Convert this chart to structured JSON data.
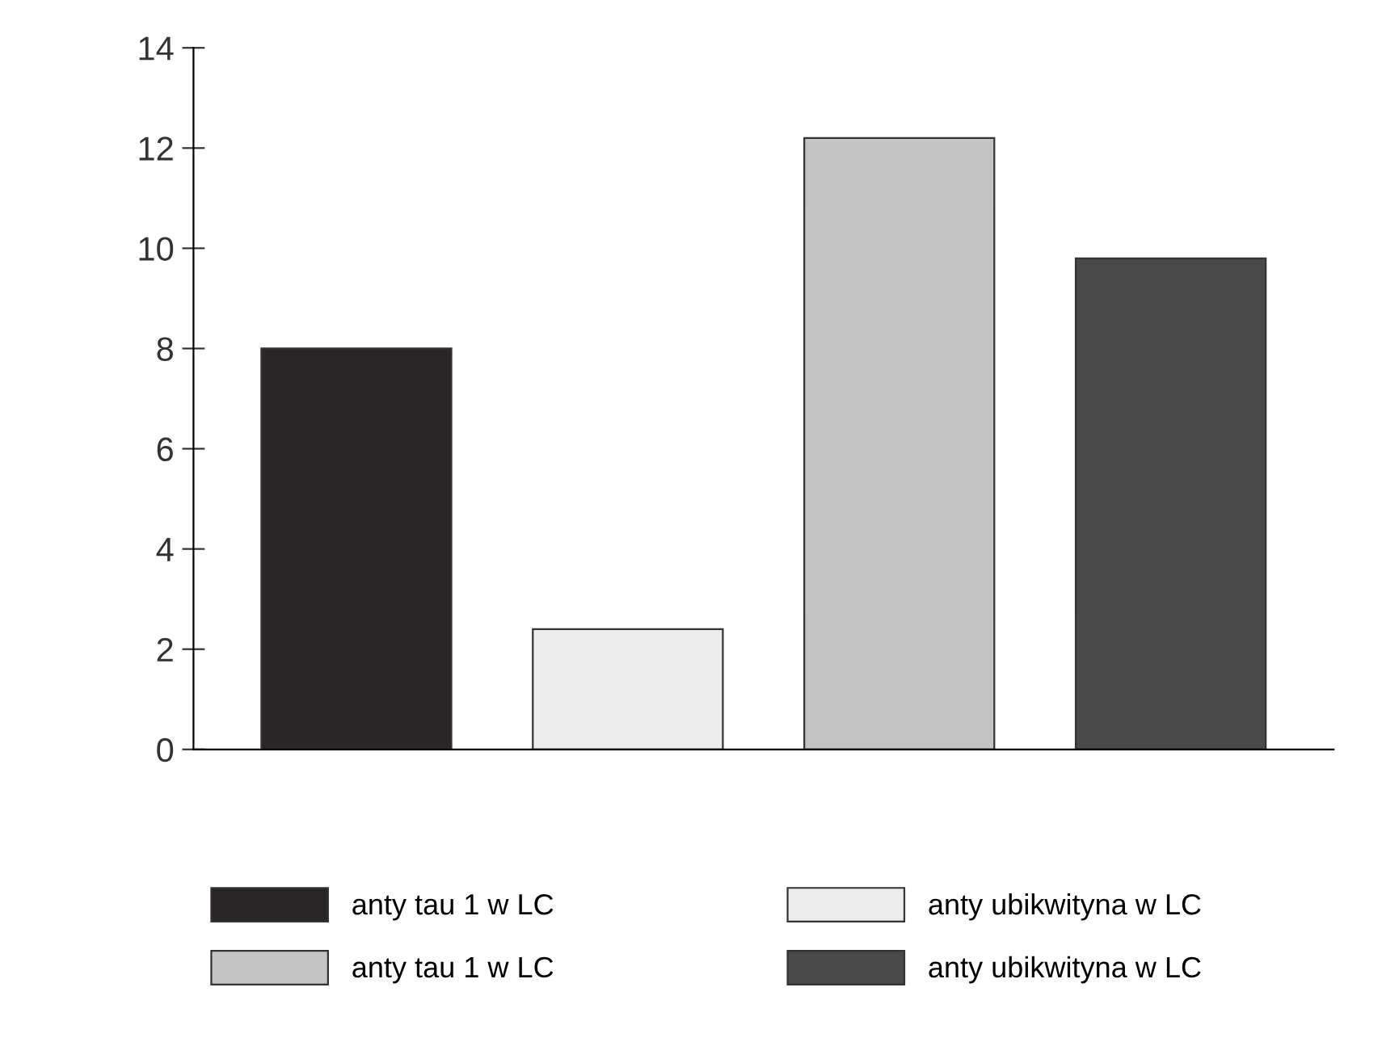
{
  "chart_data": {
    "type": "bar",
    "categories": [
      null,
      null,
      null,
      null
    ],
    "series": [
      {
        "name": "anty tau 1 w LC",
        "color": "#2a2628",
        "values": [
          8.0,
          null,
          null,
          null
        ]
      },
      {
        "name": "anty ubikwityna w LC",
        "color": "#ececec",
        "values": [
          null,
          2.4,
          null,
          null
        ]
      },
      {
        "name": "anty tau 1 w LC",
        "color": "#c4c4c4",
        "values": [
          null,
          null,
          12.2,
          null
        ]
      },
      {
        "name": "anty ubikwityna w LC",
        "color": "#4a4a4a",
        "values": [
          null,
          null,
          null,
          9.8
        ]
      }
    ],
    "ylim": [
      0,
      14
    ],
    "yticks": [
      0,
      2,
      4,
      6,
      8,
      10,
      12,
      14
    ],
    "tick_labels": "y",
    "grid": false,
    "legend": "bottom"
  }
}
